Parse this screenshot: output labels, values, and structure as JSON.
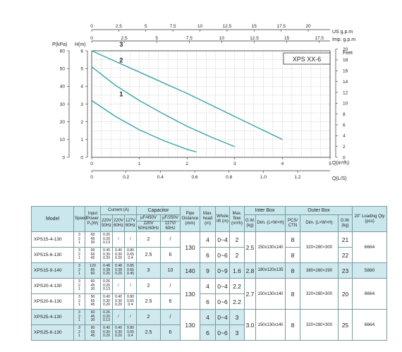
{
  "chart_data": {
    "type": "line",
    "model_label": "XPS  XX-6",
    "series": [
      {
        "name": "1",
        "x": [
          0,
          0.5,
          1.0,
          1.5,
          2.0,
          2.2
        ],
        "y": [
          3.2,
          2.3,
          1.55,
          0.95,
          0.45,
          0.3
        ]
      },
      {
        "name": "2",
        "x": [
          0,
          0.5,
          1.0,
          1.5,
          2.0,
          2.5,
          3.0
        ],
        "y": [
          5.1,
          4.05,
          3.2,
          2.45,
          1.75,
          1.15,
          0.6
        ]
      },
      {
        "name": "3",
        "x": [
          0,
          0.5,
          1.0,
          1.5,
          2.0,
          2.5,
          3.0,
          3.5,
          4.0
        ],
        "y": [
          6.0,
          5.4,
          4.8,
          4.2,
          3.6,
          2.95,
          2.3,
          1.65,
          1.0
        ]
      }
    ],
    "xlim": [
      0,
      5
    ],
    "ylim": [
      0,
      6
    ],
    "grid": true,
    "left_outer_label": "P(kPa)",
    "left_inner_label": "H(m)",
    "right_label": "Feet",
    "bottom_main_label": "Q(m³/h)",
    "bottom_ls_label": "Q(L/S)",
    "top_us_label": "US  g.p.m",
    "top_imp_label": "Imp. g.p.m",
    "left_kpa_ticks": [
      "60",
      "50",
      "40",
      "30",
      "20",
      "10",
      "0"
    ],
    "left_h_ticks": [
      "6",
      "5",
      "4",
      "3",
      "2",
      "1",
      "0"
    ],
    "right_feet_ticks": [
      "20",
      "18",
      "16",
      "14",
      "12",
      "10",
      "8",
      "6",
      "4",
      "2",
      "0"
    ],
    "bottom_main_ticks": [
      "0",
      "1",
      "2",
      "3",
      "4",
      "5"
    ],
    "bottom_ls_ticks": [
      "0",
      "0.2",
      "0.4",
      "0.6",
      "0.8",
      "1.0",
      "1.2"
    ],
    "top_us_ticks": [
      "0",
      "2.5",
      "5",
      "7.5",
      "10",
      "12.5",
      "15",
      "17.5",
      "20"
    ],
    "top_imp_ticks": [
      "0",
      "2.5",
      "5",
      "7.5",
      "10",
      "12.5",
      "15",
      "17.5"
    ],
    "colors": {
      "curve": "#3aa3a8",
      "grid": "#b5b5b5",
      "axis": "#333333"
    }
  },
  "table": {
    "headers": {
      "model": "Model",
      "speed": "Speed",
      "input_power": "Input Power P₁(W)",
      "current": "Current (A)",
      "c220": "220V 50Hz",
      "c220_60": "220V 60Hz",
      "c127": "127V 60Hz",
      "capacitor": "Capacitor",
      "cap450": "μF/450V",
      "cap250": "μF/250V",
      "cap_sub1": "220V 50Hz/60Hz",
      "cap_sub2": "127V/ 60Hz",
      "pipe": "Pipe Distance (mm)",
      "maxhead": "Max. head (m)",
      "lift": "Whole lift (m)",
      "maxflow": "Max. flow (m³/h)",
      "inter": "Inter Box",
      "gw": "G.W. (kg)",
      "dim": "Dim. (L×W×H)",
      "outer": "Outer Box",
      "pcs": "PCS/ CTN",
      "gw2": "G.W. (kg)",
      "loading": "20\" Loading Qty (pcs)"
    },
    "models": [
      {
        "name": "XPS15-4-130",
        "speeds": [
          "3",
          "2",
          "1"
        ],
        "power": [
          "60",
          "45",
          "30"
        ],
        "c220": [
          "0.26",
          "0.20",
          "0.13"
        ],
        "c60": [
          "/"
        ],
        "c127": [
          "/"
        ],
        "cap450": "2",
        "cap250": "/",
        "head": "4",
        "lift": "0~4",
        "flow": "2",
        "pcs": "8",
        "gw2": "21",
        "hl": false
      },
      {
        "name": "XPS15-6-130",
        "speeds": [
          "3",
          "2",
          "1"
        ],
        "power": [
          "90",
          "65",
          "45"
        ],
        "c220": [
          "0.40",
          "0.30",
          "0.20"
        ],
        "c60": [
          "0.40",
          "0.30",
          "0.20"
        ],
        "c127": [
          "0.80",
          "0.65",
          "0.4"
        ],
        "cap450": "2.5",
        "cap250": "6",
        "head": "6",
        "lift": "0~6",
        "flow": "2",
        "pcs": "8",
        "gw2": "22",
        "hl": false
      },
      {
        "name": "XPS15-9-140",
        "speeds": [
          "3",
          "2",
          "1"
        ],
        "power": [
          "120",
          "85",
          "60"
        ],
        "c220": [
          "0.48",
          "0.38",
          "0.26"
        ],
        "c60": [
          "0.48",
          "0.38",
          "0.26"
        ],
        "c127": [
          "0.85",
          "0.66",
          "0.45"
        ],
        "cap450": "3",
        "cap250": "10",
        "pipe": "140",
        "head": "9",
        "lift": "0~9",
        "flow": "1.6",
        "gw": "2.8",
        "dim": "180x120x135",
        "pcs": "8",
        "outer": "380×260×290",
        "gw2": "23",
        "loading": "5880",
        "hl": true
      },
      {
        "name": "XPS20-4-130",
        "speeds": [
          "3",
          "2",
          "1"
        ],
        "power": [
          "60",
          "45",
          "30"
        ],
        "c220": [
          "0.26",
          "0.20",
          "0.13"
        ],
        "c60": [
          "/"
        ],
        "c127": [
          "/"
        ],
        "cap450": "2",
        "cap250": "/",
        "head": "4",
        "lift": "0~4",
        "flow": "2.2",
        "hl": false
      },
      {
        "name": "XPS20-6-130",
        "speeds": [
          "3",
          "2",
          "1"
        ],
        "power": [
          "90",
          "65",
          "45"
        ],
        "c220": [
          "0.40",
          "0.30",
          "0.20"
        ],
        "c60": [
          "0.40",
          "0.30",
          "0.20"
        ],
        "c127": [
          "0.80",
          "0.65",
          "0.4"
        ],
        "cap450": "2.5",
        "cap250": "6",
        "head": "6",
        "lift": "0~6",
        "flow": "2.2",
        "hl": false
      },
      {
        "name": "XPS25-4-130",
        "speeds": [
          "3",
          "2",
          "1"
        ],
        "power": [
          "60",
          "45",
          "30"
        ],
        "c220": [
          "0.26",
          "0.20",
          "0.13"
        ],
        "c60": [
          "/"
        ],
        "c127": [
          "/"
        ],
        "cap450": "2",
        "cap250": "/",
        "head": "4",
        "lift": "0~4",
        "flow": "3",
        "hl": true
      },
      {
        "name": "XPS25-6-130",
        "speeds": [
          "3",
          "2",
          "1"
        ],
        "power": [
          "90",
          "65",
          "45"
        ],
        "c220": [
          "0.40",
          "0.30",
          "0.20"
        ],
        "c60": [
          "0.40",
          "0.30",
          "0.20"
        ],
        "c127": [
          "0.80",
          "0.65",
          "0.4"
        ],
        "cap450": "2.5",
        "cap250": "6",
        "head": "6",
        "lift": "0~6",
        "flow": "3",
        "hl": true
      }
    ],
    "groups": {
      "g1": {
        "pipe": "130",
        "gw": "2.5",
        "dim": "150x130x140",
        "outer": "320×280×300",
        "loading": "6664"
      },
      "g2": {
        "pipe": "130",
        "gw": "2.7",
        "dim": "150x130x140",
        "pcs": "8",
        "outer": "320×280×300",
        "gw2": "20",
        "loading": "6664"
      },
      "g3": {
        "pipe": "130",
        "gw": "3.0",
        "dim": "150x130x140",
        "pcs": "8",
        "outer": "320×280×300",
        "gw2": "25",
        "loading": "6664"
      }
    }
  }
}
